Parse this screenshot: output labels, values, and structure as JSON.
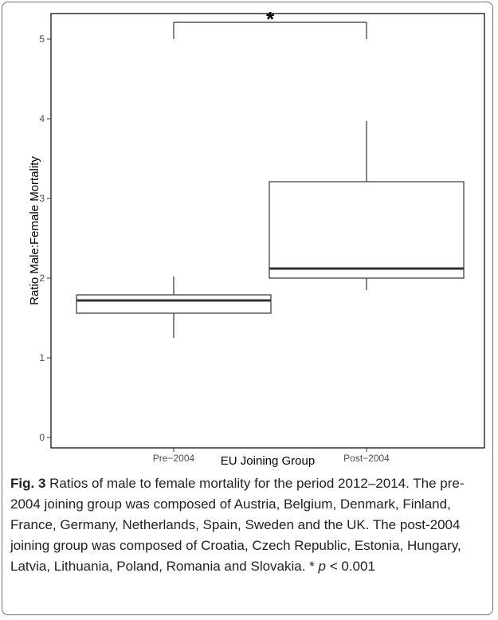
{
  "chart_data": {
    "type": "boxplot",
    "xlabel": "EU Joining Group",
    "ylabel": "Ratio Male:Female Mortality",
    "ylim": [
      0,
      5
    ],
    "yticks": [
      0,
      1,
      2,
      3,
      4,
      5
    ],
    "categories": [
      "Pre−2004",
      "Post−2004"
    ],
    "boxes": [
      {
        "category": "Pre−2004",
        "whisker_low": 1.25,
        "q1": 1.56,
        "median": 1.72,
        "q3": 1.79,
        "whisker_high": 2.02
      },
      {
        "category": "Post−2004",
        "whisker_low": 1.85,
        "q1": 2.0,
        "median": 2.12,
        "q3": 3.21,
        "whisker_high": 3.97
      }
    ],
    "significance": {
      "from": "Pre−2004",
      "to": "Post−2004",
      "y": 5.0,
      "label": "*"
    },
    "grid": false,
    "colors": {
      "line": "#333333",
      "axis": "#000000",
      "tick_text": "#4d4d4d"
    }
  },
  "caption": {
    "label": "Fig. 3",
    "text_before": " Ratios of male to female mortality for the period 2012–2014. The pre-2004 joining group was composed of Austria, Belgium, Denmark, Finland, France, Germany, Netherlands, Spain, Sweden and the UK. The post-2004 joining group was composed of Croatia, Czech Republic, Estonia, Hungary, Latvia, Lithuania, Poland, Romania and Slovakia. * ",
    "p_symbol": "p",
    "text_after": " < 0.001"
  }
}
